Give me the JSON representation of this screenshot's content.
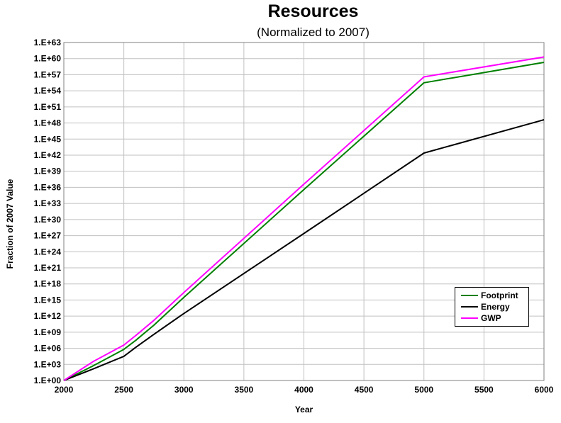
{
  "chart_data": {
    "type": "line",
    "title": "Resources",
    "subtitle": "(Normalized to 2007)",
    "xlabel": "Year",
    "ylabel": "Fraction of 2007 Value",
    "xlim": [
      2000,
      6000
    ],
    "x_ticks": [
      "2000",
      "2500",
      "3000",
      "3500",
      "4000",
      "4500",
      "5000",
      "5500",
      "6000"
    ],
    "y_scale": "log10",
    "ylim": [
      1,
      1e+63
    ],
    "y_ticks": [
      "1.E+00",
      "1.E+03",
      "1.E+06",
      "1.E+09",
      "1.E+12",
      "1.E+15",
      "1.E+18",
      "1.E+21",
      "1.E+24",
      "1.E+27",
      "1.E+30",
      "1.E+33",
      "1.E+36",
      "1.E+39",
      "1.E+42",
      "1.E+45",
      "1.E+48",
      "1.E+51",
      "1.E+54",
      "1.E+57",
      "1.E+60",
      "1.E+63"
    ],
    "grid": true,
    "legend_position": "bottom-right",
    "series": [
      {
        "name": "Footprint",
        "color": "#008000",
        "x": [
          2000,
          2250,
          2500,
          2600,
          2750,
          3000,
          4000,
          5000,
          6000
        ],
        "log10_y": [
          0,
          2.8,
          5.8,
          7.5,
          10.3,
          15.5,
          35.6,
          55.5,
          59.3
        ]
      },
      {
        "name": "Energy",
        "color": "#000000",
        "x": [
          2000,
          2250,
          2500,
          2600,
          2750,
          3000,
          4000,
          5000,
          6000
        ],
        "log10_y": [
          0,
          2.2,
          4.5,
          6.2,
          8.6,
          12.5,
          27.4,
          42.4,
          48.6
        ]
      },
      {
        "name": "GWP",
        "color": "#ff00ff",
        "x": [
          2000,
          2250,
          2500,
          2600,
          2750,
          3000,
          4000,
          5000,
          6000
        ],
        "log10_y": [
          0,
          3.6,
          6.6,
          8.4,
          11.2,
          16.4,
          36.6,
          56.6,
          60.3
        ]
      }
    ]
  }
}
